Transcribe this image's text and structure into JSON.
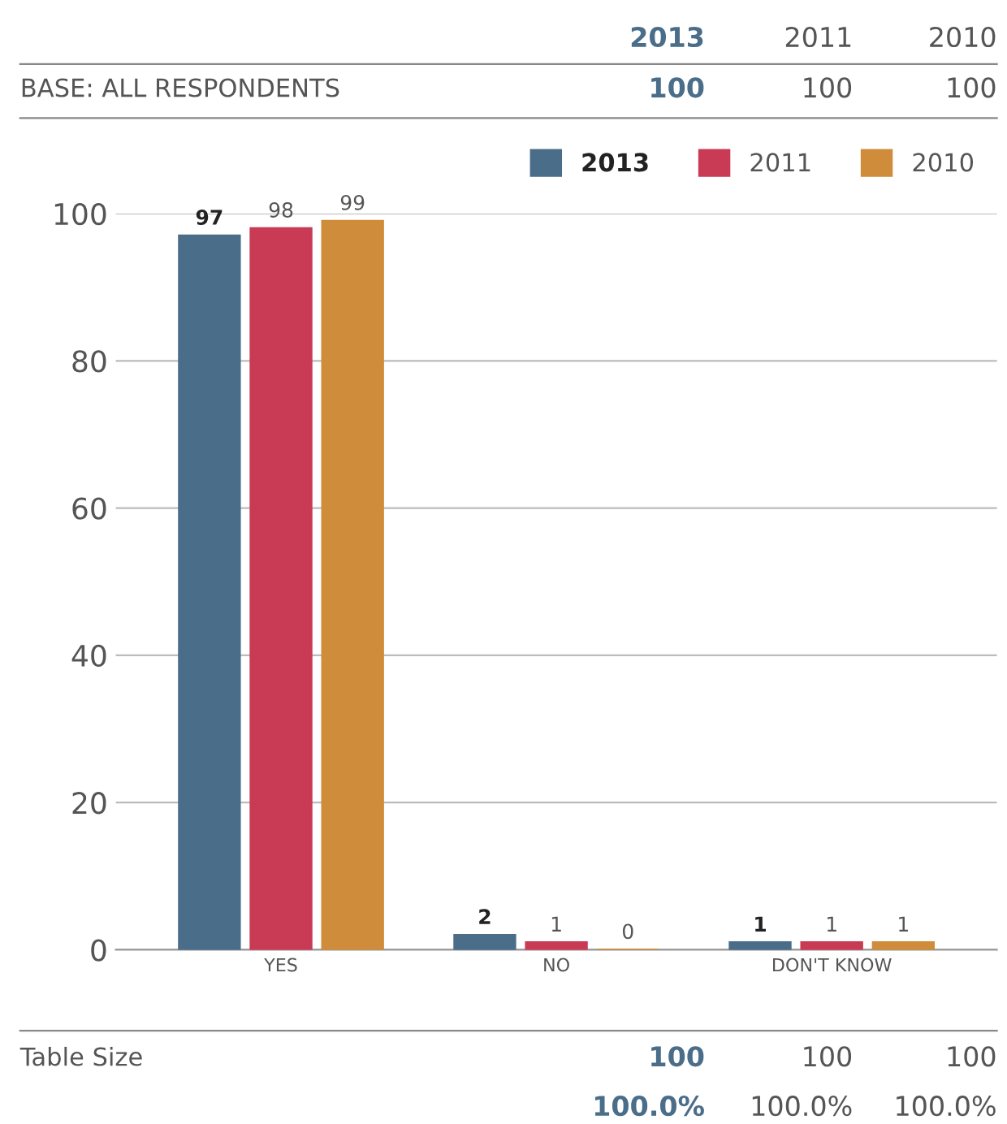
{
  "chart_data": {
    "type": "bar",
    "categories": [
      "YES",
      "NO",
      "DON'T KNOW"
    ],
    "series": [
      {
        "name": "2013",
        "color": "#4a6d89",
        "values": [
          97,
          2,
          1
        ]
      },
      {
        "name": "2011",
        "color": "#c93a55",
        "values": [
          98,
          1,
          1
        ]
      },
      {
        "name": "2010",
        "color": "#cf8c3a",
        "values": [
          99,
          0,
          1
        ]
      }
    ],
    "ylim": [
      0,
      100
    ],
    "yticks": [
      0,
      20,
      40,
      60,
      80,
      100
    ],
    "grid": "y",
    "legend": "top right",
    "data_labels": true,
    "annotations": [
      "2013",
      "2011",
      "2010",
      "BASE: ALL RESPONDENTS",
      "100",
      "100",
      "100",
      "Table Size",
      "100",
      "100",
      "100",
      "100.0%",
      "100.0%",
      "100.0%"
    ]
  }
}
